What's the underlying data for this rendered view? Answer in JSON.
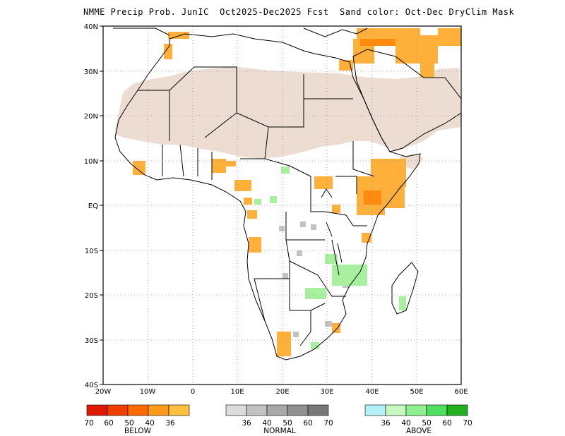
{
  "title": "NMME Precip Prob. JunIC  Oct2025-Dec2025 Fcst  Sand color: Oct-Dec DryClim Mask",
  "map": {
    "lat_range": [
      -40,
      40
    ],
    "lon_range": [
      -20,
      60
    ],
    "lat_labels": [
      "40N",
      "30N",
      "20N",
      "10N",
      "EQ",
      "10S",
      "20S",
      "30S",
      "40S"
    ],
    "lon_labels": [
      "20W",
      "10W",
      "0",
      "10E",
      "20E",
      "30E",
      "40E",
      "50E",
      "60E"
    ],
    "grid": "dotted",
    "dry_mask_color": "#eddcd2"
  },
  "legend": {
    "below": {
      "label": "BELOW",
      "colors": [
        "#dd1a00",
        "#ee3f00",
        "#ff6a00",
        "#ff9a1a",
        "#ffc040"
      ],
      "ticks": [
        "70",
        "60",
        "50",
        "40",
        "36"
      ]
    },
    "normal": {
      "label": "NORMAL",
      "colors": [
        "#dcdcdc",
        "#c2c2c2",
        "#a8a8a8",
        "#909090",
        "#787878"
      ],
      "ticks": [
        "36",
        "40",
        "50",
        "60",
        "70"
      ]
    },
    "above": {
      "label": "ABOVE",
      "colors": [
        "#b4f0f8",
        "#c8f8c0",
        "#90f090",
        "#50e060",
        "#20b020"
      ],
      "ticks": [
        "36",
        "40",
        "50",
        "60",
        "70"
      ]
    }
  }
}
